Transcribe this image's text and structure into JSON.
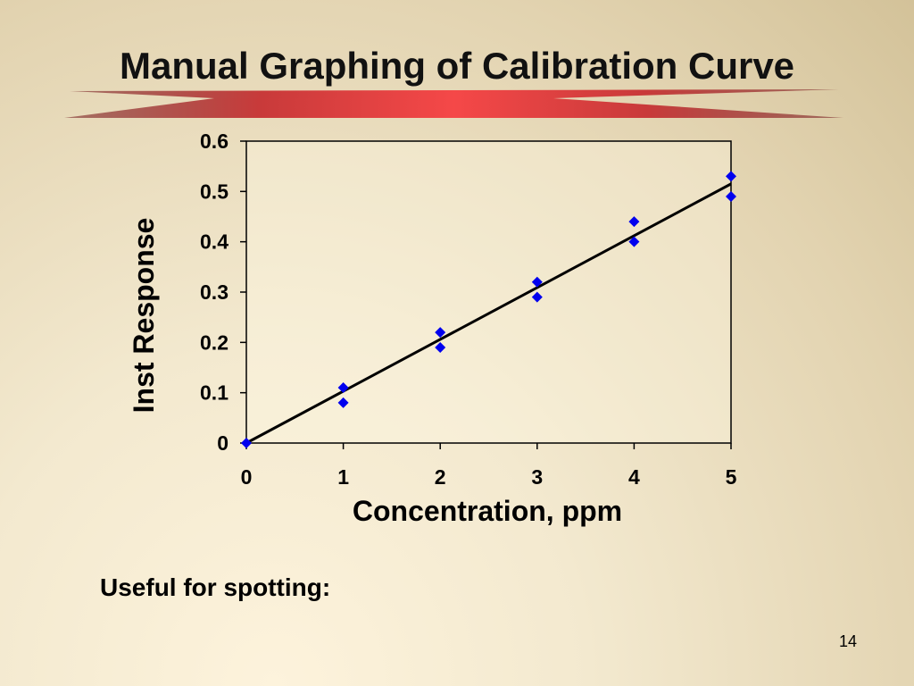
{
  "slide": {
    "title": "Manual Graphing of Calibration Curve",
    "body_text": "Useful for spotting:",
    "page_number": "14"
  },
  "colors": {
    "point": "#0000ee",
    "line": "#000000",
    "title_rule_red": "#f03c3c",
    "title_rule_dark": "#7a2a2a"
  },
  "chart_data": {
    "type": "scatter",
    "xlabel": "Concentration, ppm",
    "ylabel": "Inst Response",
    "xlim": [
      0,
      5
    ],
    "ylim": [
      0,
      0.6
    ],
    "x_ticks": [
      "0",
      "1",
      "2",
      "3",
      "4",
      "5"
    ],
    "y_ticks": [
      "0",
      "0.1",
      "0.2",
      "0.3",
      "0.4",
      "0.5",
      "0.6"
    ],
    "grid": false,
    "legend": "none",
    "series": [
      {
        "marker": "diamond",
        "points": [
          {
            "x": 0,
            "y": 0
          },
          {
            "x": 1,
            "y": 0.11
          },
          {
            "x": 1,
            "y": 0.08
          },
          {
            "x": 2,
            "y": 0.22
          },
          {
            "x": 2,
            "y": 0.19
          },
          {
            "x": 3,
            "y": 0.32
          },
          {
            "x": 3,
            "y": 0.29
          },
          {
            "x": 4,
            "y": 0.44
          },
          {
            "x": 4,
            "y": 0.4
          },
          {
            "x": 5,
            "y": 0.53
          },
          {
            "x": 5,
            "y": 0.49
          }
        ]
      }
    ],
    "fit_line": {
      "x": [
        0,
        5
      ],
      "y": [
        0,
        0.515
      ]
    }
  }
}
